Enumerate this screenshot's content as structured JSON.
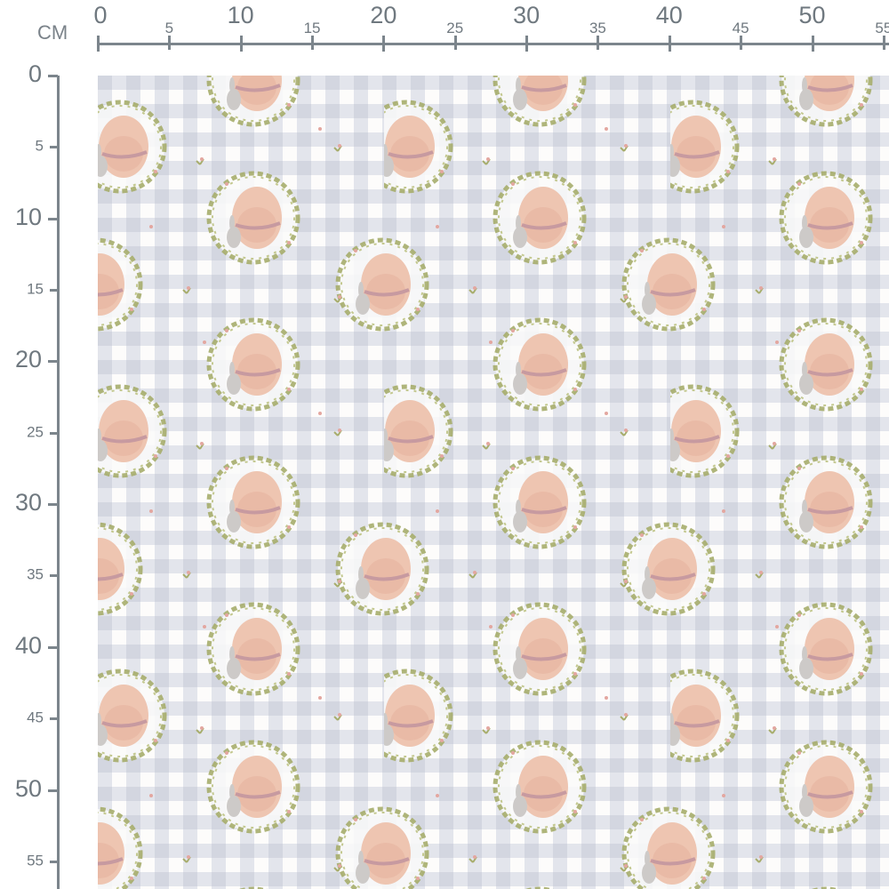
{
  "ruler": {
    "unit": "CM",
    "top_labels": [
      "0",
      "5",
      "10",
      "15",
      "20",
      "25",
      "30",
      "35",
      "40",
      "45",
      "50",
      "55"
    ],
    "left_labels": [
      "0",
      "5",
      "10",
      "15",
      "20",
      "25",
      "30",
      "35",
      "40",
      "45",
      "50",
      "55"
    ]
  },
  "fabric": {
    "pattern": "easter-egg-bunny-wreath-on-gingham",
    "colors": {
      "gingham": "#dfe1ea",
      "gingham_cross": "#cfd2de",
      "background": "#fdfcfb",
      "egg": "#edc3ae",
      "leaf": "#a7ad6c",
      "bunny": "#c9c6c4"
    }
  }
}
